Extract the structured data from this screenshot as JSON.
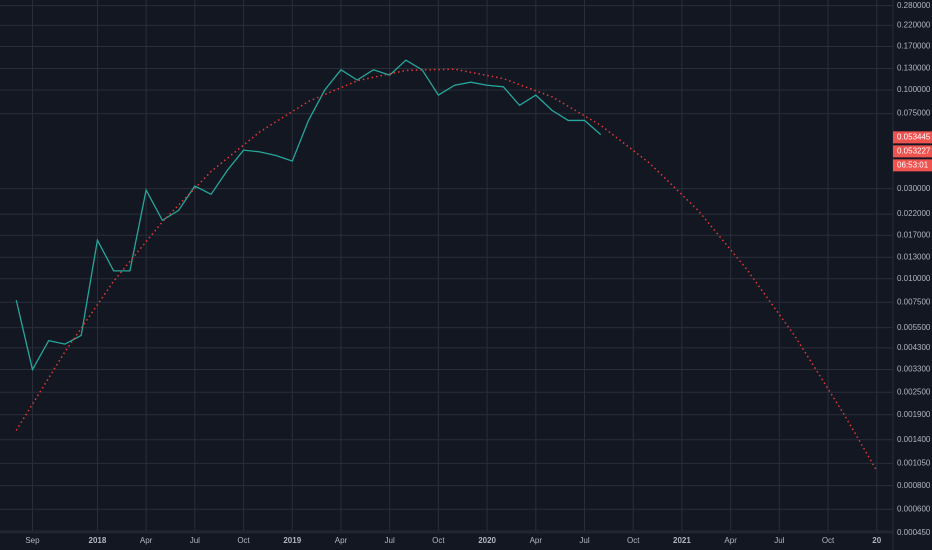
{
  "chart_data": {
    "type": "line",
    "log": true,
    "grid": true,
    "background": "#131722",
    "x": [
      "2017-08",
      "2017-09",
      "2017-10",
      "2017-11",
      "2017-12",
      "2018-01",
      "2018-02",
      "2018-03",
      "2018-04",
      "2018-05",
      "2018-06",
      "2018-07",
      "2018-08",
      "2018-09",
      "2018-10",
      "2018-11",
      "2018-12",
      "2019-01",
      "2019-02",
      "2019-03",
      "2019-04",
      "2019-05",
      "2019-06",
      "2019-07",
      "2019-08",
      "2019-09",
      "2019-10",
      "2019-11",
      "2019-12",
      "2020-01",
      "2020-02",
      "2020-03",
      "2020-04",
      "2020-05",
      "2020-06",
      "2020-07",
      "2020-08"
    ],
    "series": [
      {
        "color": "#26a69a",
        "values": [
          0.0077,
          0.0033,
          0.0047,
          0.0045,
          0.005,
          0.016,
          0.011,
          0.011,
          0.0295,
          0.0204,
          0.023,
          0.031,
          0.028,
          0.0375,
          0.048,
          0.047,
          0.045,
          0.042,
          0.069,
          0.1,
          0.128,
          0.113,
          0.128,
          0.12,
          0.144,
          0.128,
          0.094,
          0.106,
          0.11,
          0.106,
          0.104,
          0.083,
          0.094,
          0.078,
          0.069,
          0.069,
          0.058
        ]
      }
    ],
    "fit": {
      "color": "#e53935",
      "style": "dotted",
      "x": [
        "2017-08",
        "2017-11",
        "2018-02",
        "2018-05",
        "2018-08",
        "2018-11",
        "2019-02",
        "2019-05",
        "2019-08",
        "2019-11",
        "2020-02",
        "2020-05",
        "2020-08",
        "2020-11",
        "2021-02",
        "2021-05",
        "2021-08",
        "2021-11",
        "2022-01"
      ],
      "values": [
        0.00157,
        0.0041,
        0.0097,
        0.02,
        0.037,
        0.06,
        0.087,
        0.112,
        0.127,
        0.129,
        0.115,
        0.092,
        0.065,
        0.041,
        0.023,
        0.0112,
        0.0049,
        0.0019,
        0.00096
      ]
    },
    "xlim": [
      "2017-07",
      "2022-02"
    ],
    "xticks": [
      {
        "value": "2017-09",
        "label": "Sep"
      },
      {
        "value": "2018-01",
        "label": "2018"
      },
      {
        "value": "2018-04",
        "label": "Apr"
      },
      {
        "value": "2018-07",
        "label": "Jul"
      },
      {
        "value": "2018-10",
        "label": "Oct"
      },
      {
        "value": "2019-01",
        "label": "2019"
      },
      {
        "value": "2019-04",
        "label": "Apr"
      },
      {
        "value": "2019-07",
        "label": "Jul"
      },
      {
        "value": "2019-10",
        "label": "Oct"
      },
      {
        "value": "2020-01",
        "label": "2020"
      },
      {
        "value": "2020-04",
        "label": "Apr"
      },
      {
        "value": "2020-07",
        "label": "Jul"
      },
      {
        "value": "2020-10",
        "label": "Oct"
      },
      {
        "value": "2021-01",
        "label": "2021"
      },
      {
        "value": "2021-04",
        "label": "Apr"
      },
      {
        "value": "2021-07",
        "label": "Jul"
      },
      {
        "value": "2021-10",
        "label": "Oct"
      },
      {
        "value": "2022-01",
        "label": "20"
      }
    ],
    "ylim": [
      0.00046,
      0.3
    ],
    "yticks": [
      {
        "value": 0.28,
        "label": "0.280000"
      },
      {
        "value": 0.22,
        "label": "0.220000"
      },
      {
        "value": 0.17,
        "label": "0.170000"
      },
      {
        "value": 0.13,
        "label": "0.130000"
      },
      {
        "value": 0.1,
        "label": "0.100000"
      },
      {
        "value": 0.075,
        "label": "0.075000"
      },
      {
        "value": 0.03,
        "label": "0.030000"
      },
      {
        "value": 0.022,
        "label": "0.022000"
      },
      {
        "value": 0.017,
        "label": "0.017000"
      },
      {
        "value": 0.013,
        "label": "0.013000"
      },
      {
        "value": 0.01,
        "label": "0.010000"
      },
      {
        "value": 0.0075,
        "label": "0.007500"
      },
      {
        "value": 0.0055,
        "label": "0.005500"
      },
      {
        "value": 0.0043,
        "label": "0.004300"
      },
      {
        "value": 0.0033,
        "label": "0.003300"
      },
      {
        "value": 0.0025,
        "label": "0.002500"
      },
      {
        "value": 0.0019,
        "label": "0.001900"
      },
      {
        "value": 0.0014,
        "label": "0.001400"
      },
      {
        "value": 0.00105,
        "label": "0.001050"
      },
      {
        "value": 0.0008,
        "label": "0.000800"
      },
      {
        "value": 0.0006,
        "label": "0.000600"
      },
      {
        "value": 0.00045,
        "label": "0.000450"
      }
    ],
    "price_labels": [
      {
        "value": 0.053445,
        "label": "0.053445"
      },
      {
        "value": 0.053227,
        "label": "0.053227"
      }
    ],
    "price_label_color": "#ef5350",
    "countdown": "06:53:01"
  }
}
